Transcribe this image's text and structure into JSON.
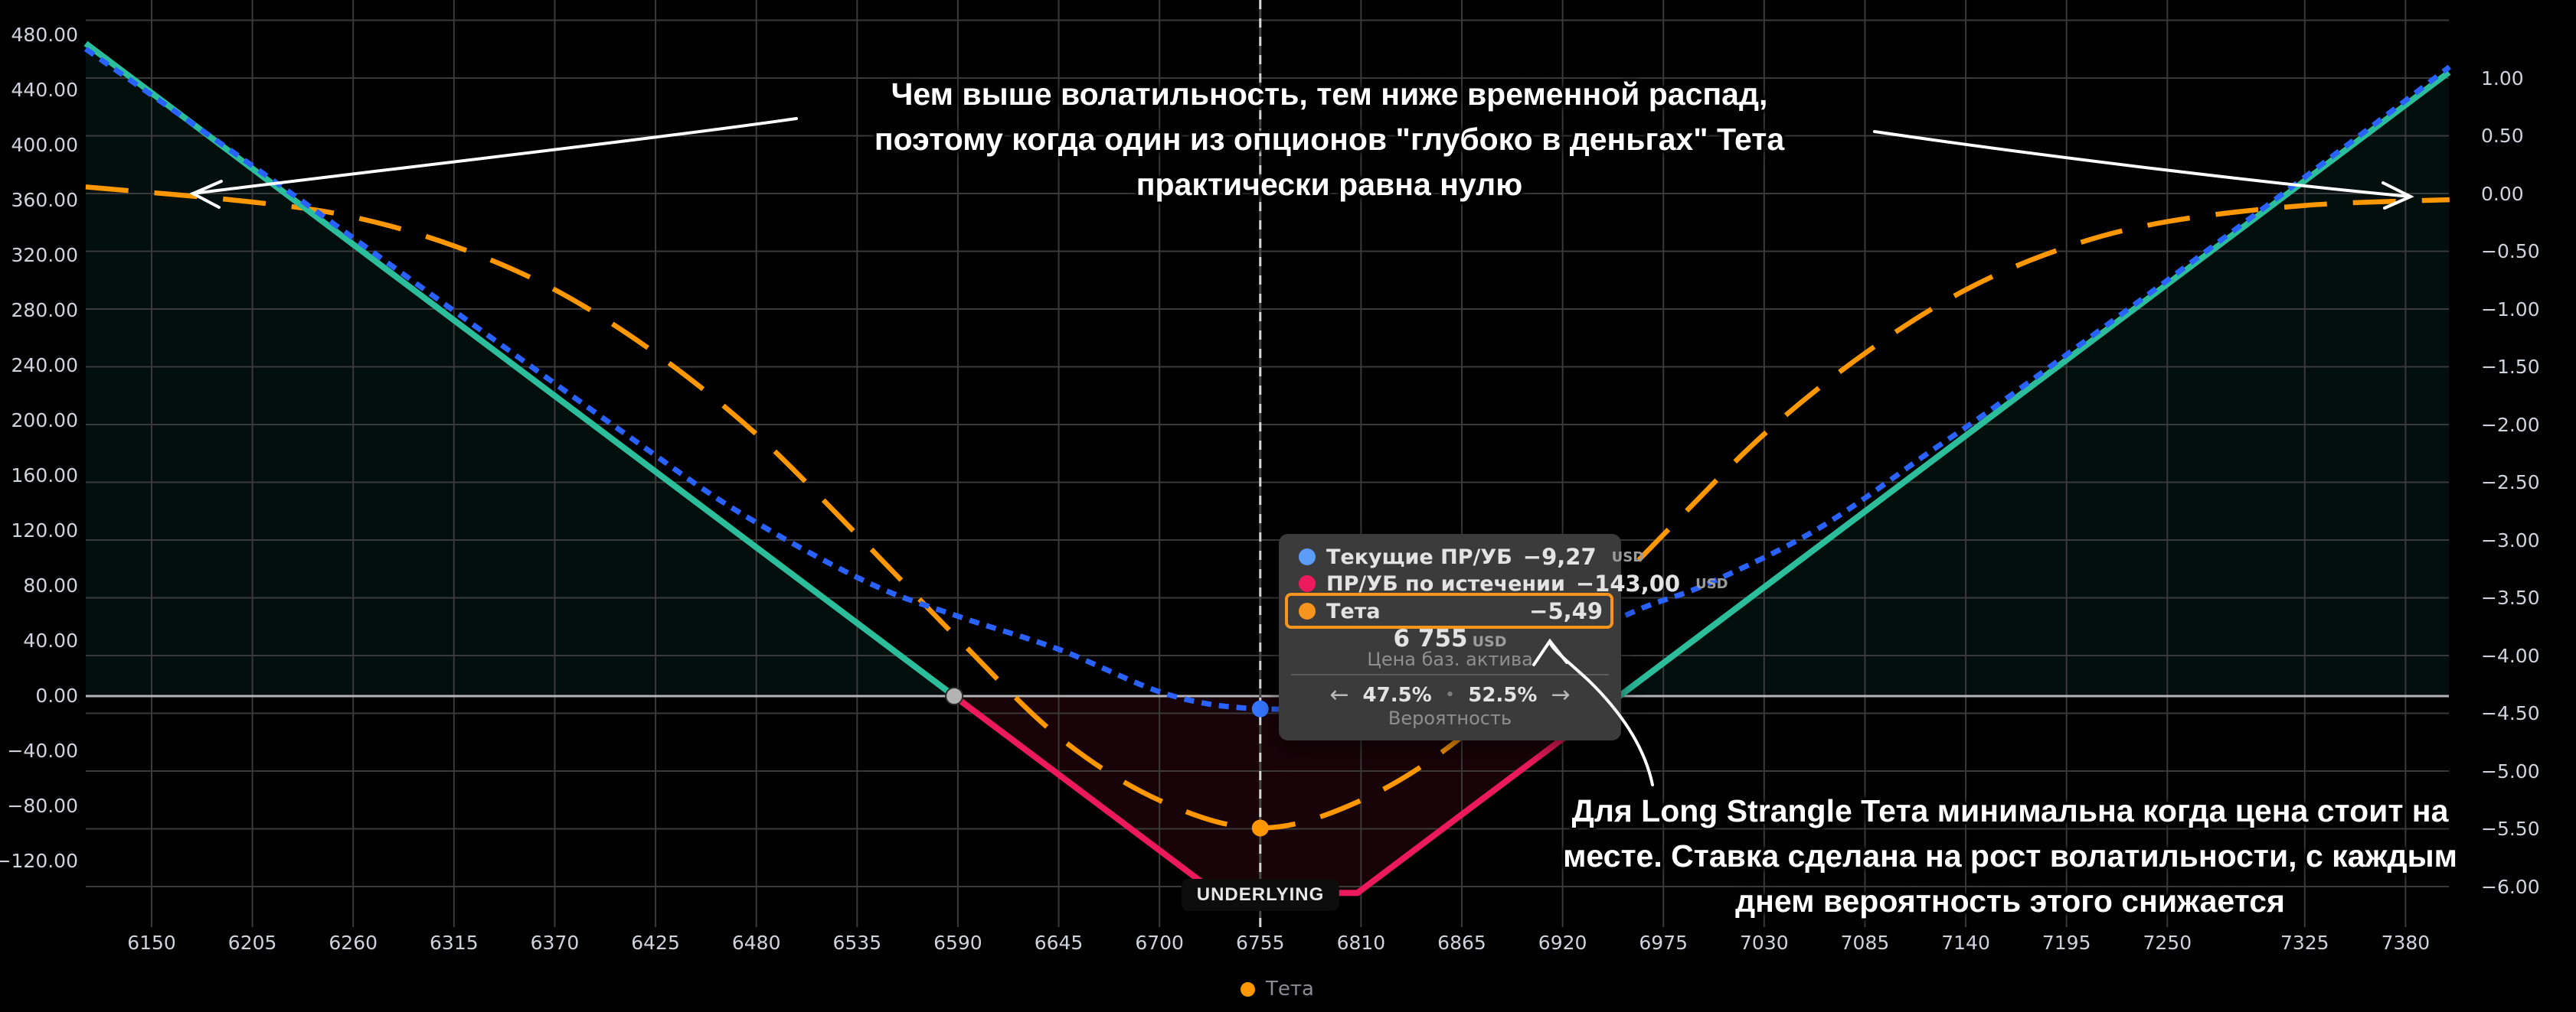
{
  "chart": {
    "underlying_badge": "UNDERLYING",
    "legend": {
      "label": "Тета",
      "color": "#ff9800"
    },
    "colors": {
      "profit_line": "#2cbd9b",
      "loss_line": "#ec1a5c",
      "current_line": "#2962ff",
      "theta_line": "#ff9800",
      "profit_fill": "rgba(44,189,155,0.08)",
      "loss_fill": "rgba(236,26,92,0.10)",
      "grid": "#3a3a3a",
      "zero_line": "#b5b5b8",
      "crosshair": "#d5d5d5"
    }
  },
  "chart_data": {
    "type": "line",
    "title": "",
    "xlabel": "Цена баз. актива",
    "x_ticks": [
      6150,
      6205,
      6260,
      6315,
      6370,
      6425,
      6480,
      6535,
      6590,
      6645,
      6700,
      6755,
      6810,
      6865,
      6920,
      6975,
      7030,
      7085,
      7140,
      7195,
      7250,
      7325,
      7380
    ],
    "x_range": [
      6114,
      7404
    ],
    "left_axis": {
      "title": "P/L USD",
      "min": -120,
      "max": 480,
      "step": 40,
      "labels": [
        "480.00",
        "440.00",
        "400.00",
        "360.00",
        "320.00",
        "280.00",
        "240.00",
        "200.00",
        "160.00",
        "120.00",
        "80.00",
        "40.00",
        "0.00",
        "−40.00",
        "−80.00",
        "−120.00"
      ],
      "values": [
        480,
        440,
        400,
        360,
        320,
        280,
        240,
        200,
        160,
        120,
        80,
        40,
        0,
        -40,
        -80,
        -120
      ]
    },
    "right_axis": {
      "title": "Theta",
      "min": -6.0,
      "max": 1.0,
      "step": 0.5,
      "labels": [
        "1.00",
        "0.50",
        "0.00",
        "−0.50",
        "−1.00",
        "−1.50",
        "−2.00",
        "−2.50",
        "−3.00",
        "−3.50",
        "−4.00",
        "−4.50",
        "−5.00",
        "−5.50",
        "−6.00"
      ],
      "values": [
        1.0,
        0.5,
        0.0,
        -0.5,
        -1.0,
        -1.5,
        -2.0,
        -2.5,
        -3.0,
        -3.5,
        -4.0,
        -4.5,
        -5.0,
        -5.5,
        -6.0
      ]
    },
    "series": [
      {
        "name": "ПР/УБ по истечении",
        "axis": "left",
        "style": "solid",
        "shape": "piecewise",
        "strikes": [
          6731,
          6808
        ],
        "max_loss": -143,
        "breakevens": [
          6588,
          6951
        ],
        "points": [
          [
            6114,
            474
          ],
          [
            6731,
            -143
          ],
          [
            6808,
            -143
          ],
          [
            7404,
            453
          ]
        ]
      },
      {
        "name": "Текущие ПР/УБ",
        "axis": "left",
        "style": "dashed",
        "value_at_underlying": -9.27,
        "points": [
          [
            6114,
            470
          ],
          [
            6220,
            371
          ],
          [
            6320,
            275
          ],
          [
            6410,
            189
          ],
          [
            6470,
            134
          ],
          [
            6540,
            83
          ],
          [
            6590,
            58
          ],
          [
            6645,
            34
          ],
          [
            6705,
            1
          ],
          [
            6755,
            -9.3
          ],
          [
            6810,
            -5
          ],
          [
            6860,
            9
          ],
          [
            6910,
            30
          ],
          [
            6960,
            62
          ],
          [
            7000,
            82
          ],
          [
            7060,
            122
          ],
          [
            7120,
            177
          ],
          [
            7160,
            214
          ],
          [
            7250,
            302
          ],
          [
            7340,
            392
          ],
          [
            7404,
            457
          ]
        ]
      },
      {
        "name": "Тета",
        "axis": "right",
        "style": "dashed",
        "value_at_underlying": -5.49,
        "points": [
          [
            6114,
            0.06
          ],
          [
            6205,
            -0.07
          ],
          [
            6260,
            -0.2
          ],
          [
            6315,
            -0.45
          ],
          [
            6370,
            -0.83
          ],
          [
            6425,
            -1.38
          ],
          [
            6480,
            -2.08
          ],
          [
            6535,
            -2.95
          ],
          [
            6590,
            -3.85
          ],
          [
            6645,
            -4.7
          ],
          [
            6700,
            -5.25
          ],
          [
            6755,
            -5.49
          ],
          [
            6810,
            -5.25
          ],
          [
            6865,
            -4.7
          ],
          [
            6920,
            -3.85
          ],
          [
            6975,
            -2.95
          ],
          [
            7030,
            -2.08
          ],
          [
            7085,
            -1.38
          ],
          [
            7140,
            -0.83
          ],
          [
            7195,
            -0.46
          ],
          [
            7250,
            -0.24
          ],
          [
            7325,
            -0.1
          ],
          [
            7404,
            -0.05
          ]
        ]
      }
    ],
    "markers": [
      {
        "name": "breakeven-point",
        "x": 6588,
        "y": 0,
        "axis": "left",
        "color": "#b3b3b3"
      },
      {
        "name": "current-pl-point",
        "x": 6755,
        "y": -9.27,
        "axis": "left",
        "color": "#3575ff"
      },
      {
        "name": "theta-min-point",
        "x": 6755,
        "y": -5.49,
        "axis": "right",
        "color": "#ff9800"
      }
    ],
    "underlying_price": 6755,
    "legend_position": "bottom-center",
    "grid": true
  },
  "tooltip": {
    "rows": [
      {
        "label": "Текущие ПР/УБ",
        "value": "−9,27",
        "unit": "USD",
        "color": "#5b9cf6",
        "highlighted": false
      },
      {
        "label": "ПР/УБ по истечении",
        "value": "−143,00",
        "unit": "USD",
        "color": "#ec1a5c",
        "highlighted": false
      },
      {
        "label": "Тета",
        "value": "−5,49",
        "unit": "",
        "color": "#f7941e",
        "highlighted": true
      }
    ],
    "price": "6 755",
    "price_unit": "USD",
    "price_caption": "Цена баз. актива",
    "prob_left_arrow": "←",
    "prob_left": "47.5%",
    "prob_separator": "•",
    "prob_right": "52.5%",
    "prob_right_arrow": "→",
    "prob_caption": "Вероятность"
  },
  "annotations": {
    "top": {
      "lines": [
        "Чем выше волатильность, тем ниже временной распад,",
        "поэтому когда один из опционов \"глубоко в деньгах\" Тета",
        "практически равна нулю"
      ]
    },
    "bottom": {
      "lines": [
        "Для Long Strangle Тета минимальна когда цена стоит на",
        "месте. Ставка сделана на рост волатильности, с каждым",
        "днем вероятность этого снижается"
      ]
    }
  }
}
